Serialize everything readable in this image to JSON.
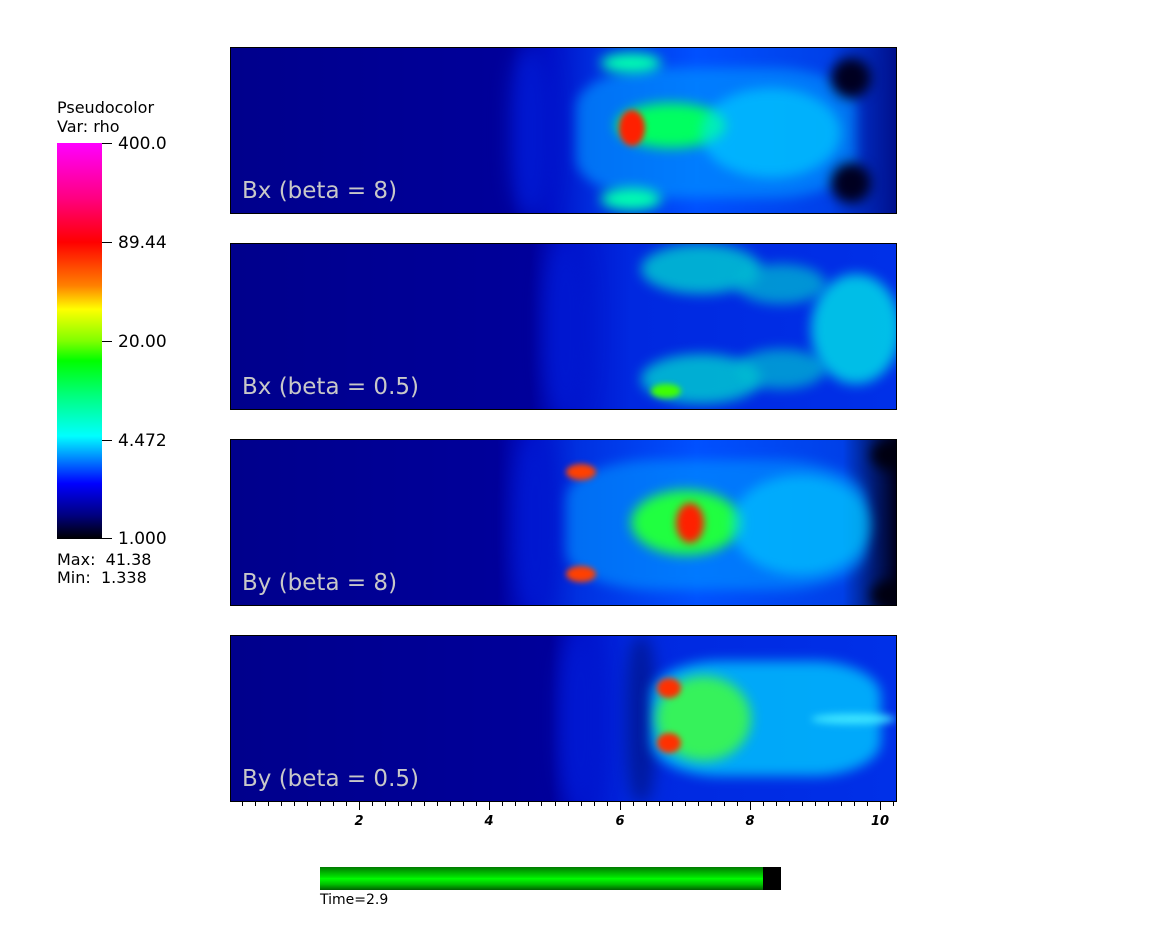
{
  "legend": {
    "title_line1": "Pseudocolor",
    "title_line2": "Var: rho",
    "ticks": [
      "400.0",
      "89.44",
      "20.00",
      "4.472",
      "1.000"
    ],
    "max_text": "Max:  41.38",
    "min_text": "Min:  1.338",
    "colormap": [
      "#ff00ff",
      "#ff0000",
      "#ffff00",
      "#00ff00",
      "#00ffff",
      "#0000ff",
      "#000000"
    ]
  },
  "panels": [
    {
      "label": "Bx (beta = 8)"
    },
    {
      "label": "Bx (beta = 0.5)"
    },
    {
      "label": "By (beta = 8)"
    },
    {
      "label": "By (beta = 0.5)"
    }
  ],
  "axis": {
    "tick_labels": [
      "2",
      "4",
      "6",
      "8",
      "10"
    ]
  },
  "time": {
    "label": "Time=2.9",
    "progress_fraction": 0.96
  },
  "colors": {
    "background_flow": "#00008c",
    "timebar_fill": "#00ff00"
  }
}
